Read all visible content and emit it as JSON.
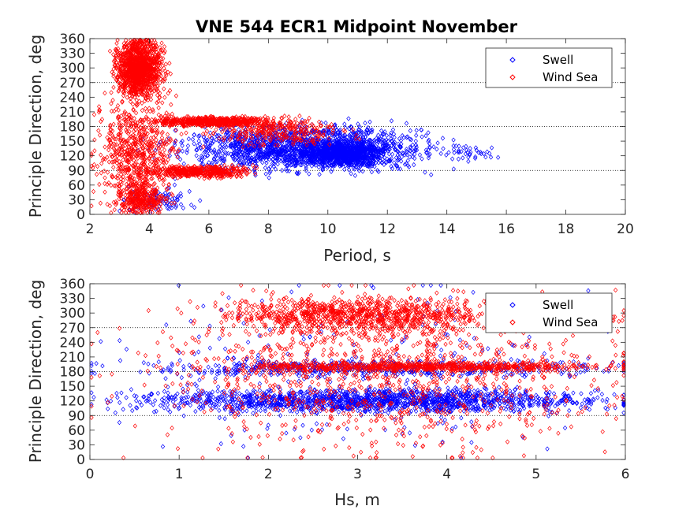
{
  "title": "VNE 544 ECR1 Midpoint November",
  "colors": {
    "swell": "#0000ff",
    "wind_sea": "#ff0000",
    "axis": "#262626"
  },
  "chart_data": [
    {
      "type": "scatter",
      "title": "VNE 544 ECR1 Midpoint November",
      "xlabel": "Period, s",
      "ylabel": "Principle Direction, deg",
      "xlim": [
        2,
        20
      ],
      "ylim": [
        0,
        360
      ],
      "xticks": [
        "2",
        "4",
        "6",
        "8",
        "10",
        "12",
        "14",
        "16",
        "18",
        "20"
      ],
      "yticks": [
        "0",
        "30",
        "60",
        "90",
        "120",
        "150",
        "180",
        "210",
        "240",
        "270",
        "300",
        "330",
        "360"
      ],
      "reference_lines": [
        90,
        180,
        270
      ],
      "legend": {
        "position": "top-right",
        "entries": [
          "Swell",
          "Wind Sea"
        ]
      },
      "series": [
        {
          "name": "Swell",
          "color": "#0000ff",
          "marker": "diamond-open",
          "clusters": [
            {
              "x": [
                5.0,
                13.5
              ],
              "y": [
                85,
                185
              ],
              "n": 1700
            },
            {
              "x": [
                9.0,
                12.0
              ],
              "y": [
                100,
                150
              ],
              "n": 900
            },
            {
              "x": [
                3.0,
                5.5
              ],
              "y": [
                0,
                60
              ],
              "n": 90
            },
            {
              "x": [
                13.5,
                15.7
              ],
              "y": [
                110,
                145
              ],
              "n": 40
            }
          ]
        },
        {
          "name": "Wind Sea",
          "color": "#ff0000",
          "marker": "diamond-open",
          "clusters": [
            {
              "x": [
                2.8,
                4.5
              ],
              "y": [
                240,
                360
              ],
              "n": 1300
            },
            {
              "x": [
                4.0,
                8.0
              ],
              "y": [
                180,
                200
              ],
              "n": 650
            },
            {
              "x": [
                4.0,
                7.5
              ],
              "y": [
                75,
                100
              ],
              "n": 450
            },
            {
              "x": [
                2.2,
                5.0
              ],
              "y": [
                0,
                240
              ],
              "n": 700
            },
            {
              "x": [
                3.0,
                4.5
              ],
              "y": [
                0,
                60
              ],
              "n": 250
            },
            {
              "x": [
                6.0,
                10.5
              ],
              "y": [
                140,
                200
              ],
              "n": 300
            }
          ]
        }
      ]
    },
    {
      "type": "scatter",
      "title": "",
      "xlabel": "Hs, m",
      "ylabel": "Principle Direction, deg",
      "xlim": [
        0,
        6
      ],
      "ylim": [
        0,
        360
      ],
      "xticks": [
        "0",
        "1",
        "2",
        "3",
        "4",
        "5",
        "6"
      ],
      "yticks": [
        "0",
        "30",
        "60",
        "90",
        "120",
        "150",
        "180",
        "210",
        "240",
        "270",
        "300",
        "330",
        "360"
      ],
      "reference_lines": [
        90,
        180,
        270
      ],
      "legend": {
        "position": "top-right",
        "entries": [
          "Swell",
          "Wind Sea"
        ]
      },
      "series": [
        {
          "name": "Swell",
          "color": "#0000ff",
          "marker": "diamond-open",
          "clusters": [
            {
              "x": [
                0.3,
                6.0
              ],
              "y": [
                95,
                145
              ],
              "n": 1500
            },
            {
              "x": [
                0.3,
                6.0
              ],
              "y": [
                170,
                205
              ],
              "n": 500
            },
            {
              "x": [
                0.2,
                6.0
              ],
              "y": [
                0,
                360
              ],
              "n": 250
            }
          ]
        },
        {
          "name": "Wind Sea",
          "color": "#ff0000",
          "marker": "diamond-open",
          "clusters": [
            {
              "x": [
                1.4,
                4.6
              ],
              "y": [
                260,
                330
              ],
              "n": 900
            },
            {
              "x": [
                1.5,
                6.0
              ],
              "y": [
                180,
                200
              ],
              "n": 700
            },
            {
              "x": [
                0.5,
                6.0
              ],
              "y": [
                0,
                360
              ],
              "n": 1100
            },
            {
              "x": [
                4.5,
                6.0
              ],
              "y": [
                270,
                310
              ],
              "n": 80
            }
          ]
        }
      ]
    }
  ]
}
